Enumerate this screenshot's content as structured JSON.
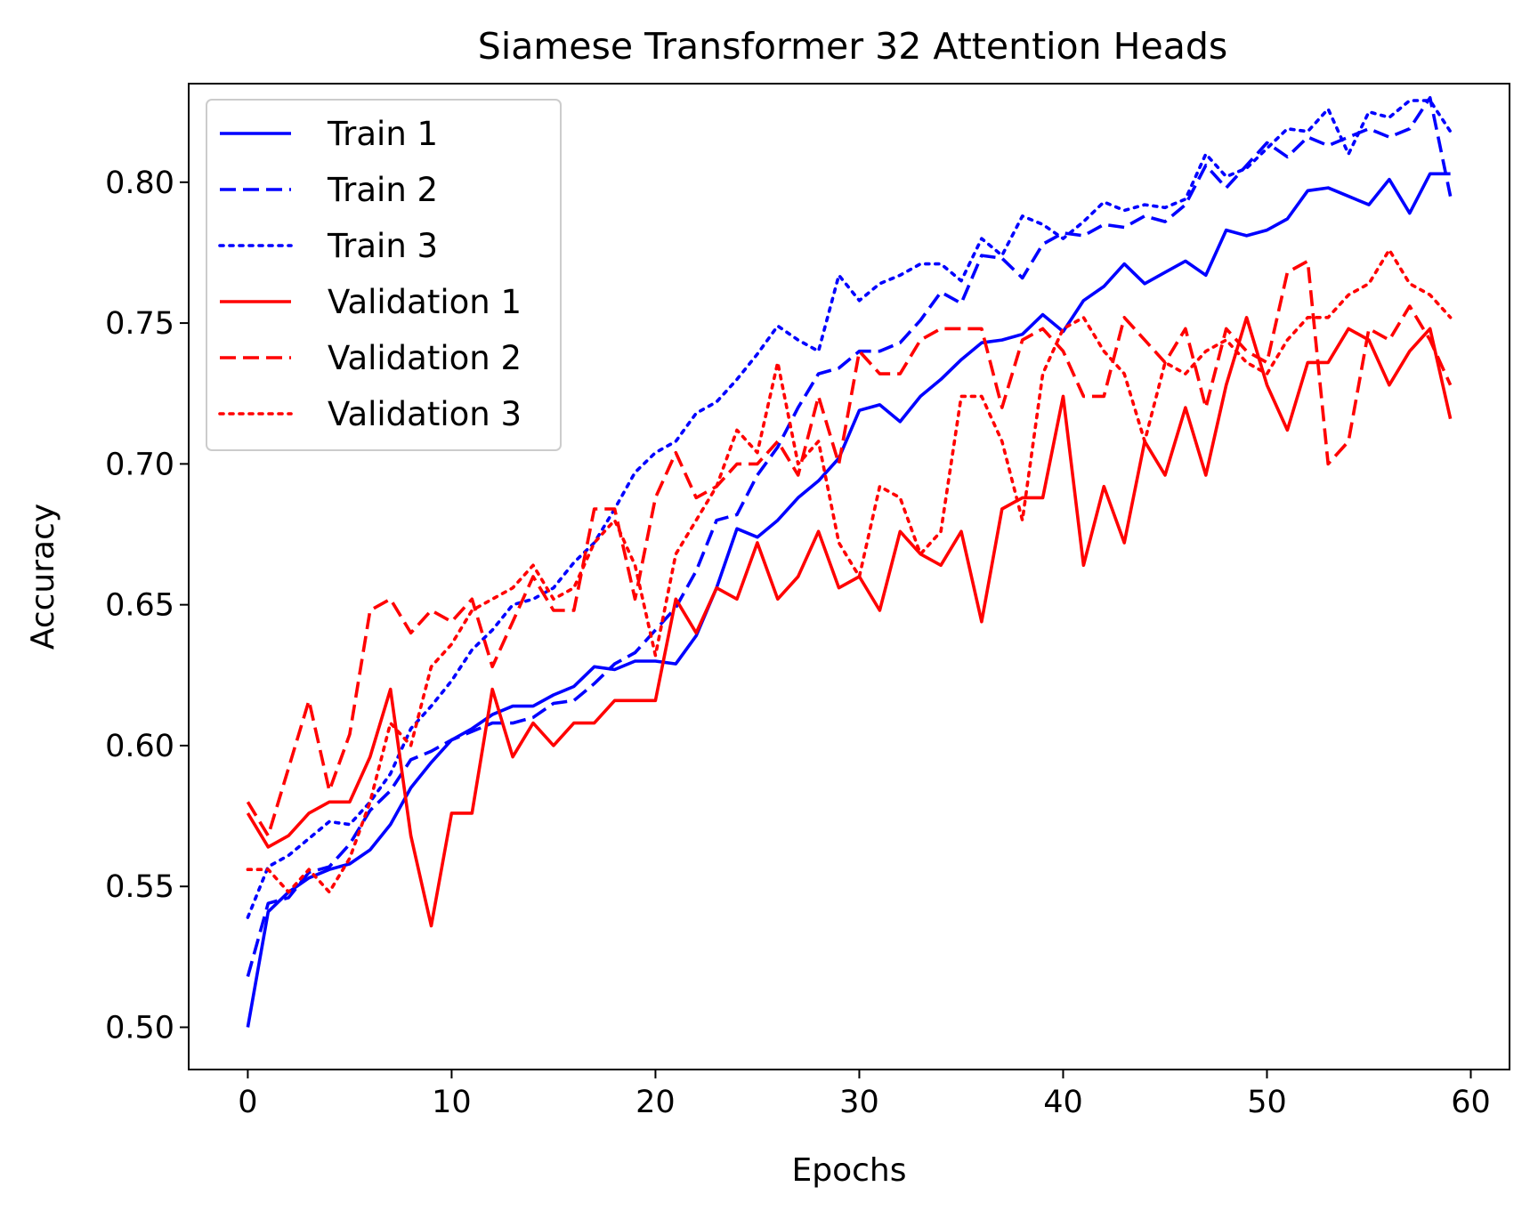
{
  "chart_data": {
    "type": "line",
    "title": "Siamese Transformer 32 Attention Heads",
    "xlabel": "Epochs",
    "ylabel": "Accuracy",
    "xlim": [
      -2.9,
      61.9
    ],
    "ylim": [
      0.485,
      0.835
    ],
    "xticks": [
      0,
      10,
      20,
      30,
      40,
      50,
      60
    ],
    "yticks": [
      0.5,
      0.55,
      0.6,
      0.65,
      0.7,
      0.75,
      0.8
    ],
    "xtick_labels": [
      "0",
      "10",
      "20",
      "30",
      "40",
      "50",
      "60"
    ],
    "ytick_labels": [
      "0.50",
      "0.55",
      "0.60",
      "0.65",
      "0.70",
      "0.75",
      "0.80"
    ],
    "grid": false,
    "legend_position": "upper-left",
    "x": [
      0,
      1,
      2,
      3,
      4,
      5,
      6,
      7,
      8,
      9,
      10,
      11,
      12,
      13,
      14,
      15,
      16,
      17,
      18,
      19,
      20,
      21,
      22,
      23,
      24,
      25,
      26,
      27,
      28,
      29,
      30,
      31,
      32,
      33,
      34,
      35,
      36,
      37,
      38,
      39,
      40,
      41,
      42,
      43,
      44,
      45,
      46,
      47,
      48,
      49,
      50,
      51,
      52,
      53,
      54,
      55,
      56,
      57,
      58,
      59
    ],
    "series": [
      {
        "name": "Train 1",
        "color": "#0000ff",
        "dash": "solid",
        "values": [
          0.5,
          0.541,
          0.548,
          0.553,
          0.556,
          0.558,
          0.563,
          0.572,
          0.585,
          0.594,
          0.602,
          0.606,
          0.611,
          0.614,
          0.614,
          0.618,
          0.621,
          0.628,
          0.627,
          0.63,
          0.63,
          0.629,
          0.639,
          0.656,
          0.677,
          0.674,
          0.68,
          0.688,
          0.694,
          0.702,
          0.719,
          0.721,
          0.715,
          0.724,
          0.73,
          0.737,
          0.743,
          0.744,
          0.746,
          0.753,
          0.747,
          0.758,
          0.763,
          0.771,
          0.764,
          0.768,
          0.772,
          0.767,
          0.783,
          0.781,
          0.783,
          0.787,
          0.797,
          0.798,
          0.795,
          0.792,
          0.801,
          0.789,
          0.803,
          0.803
        ]
      },
      {
        "name": "Train 2",
        "color": "#0000ff",
        "dash": "dashed",
        "values": [
          0.518,
          0.544,
          0.546,
          0.555,
          0.557,
          0.565,
          0.577,
          0.584,
          0.595,
          0.598,
          0.602,
          0.605,
          0.608,
          0.608,
          0.61,
          0.615,
          0.616,
          0.622,
          0.629,
          0.633,
          0.641,
          0.649,
          0.662,
          0.68,
          0.682,
          0.696,
          0.706,
          0.72,
          0.732,
          0.734,
          0.74,
          0.74,
          0.743,
          0.751,
          0.761,
          0.757,
          0.774,
          0.773,
          0.766,
          0.778,
          0.782,
          0.781,
          0.785,
          0.784,
          0.788,
          0.786,
          0.792,
          0.806,
          0.798,
          0.806,
          0.814,
          0.809,
          0.816,
          0.813,
          0.816,
          0.819,
          0.816,
          0.819,
          0.83,
          0.795
        ]
      },
      {
        "name": "Train 3",
        "color": "#0000ff",
        "dash": "dotted",
        "values": [
          0.539,
          0.557,
          0.561,
          0.567,
          0.573,
          0.572,
          0.58,
          0.59,
          0.606,
          0.614,
          0.623,
          0.634,
          0.641,
          0.65,
          0.652,
          0.656,
          0.665,
          0.672,
          0.684,
          0.697,
          0.704,
          0.708,
          0.718,
          0.722,
          0.73,
          0.739,
          0.749,
          0.744,
          0.74,
          0.767,
          0.758,
          0.764,
          0.767,
          0.771,
          0.771,
          0.765,
          0.78,
          0.774,
          0.788,
          0.785,
          0.78,
          0.786,
          0.793,
          0.79,
          0.792,
          0.791,
          0.794,
          0.81,
          0.802,
          0.805,
          0.812,
          0.819,
          0.818,
          0.826,
          0.81,
          0.825,
          0.823,
          0.829,
          0.829,
          0.818
        ]
      },
      {
        "name": "Validation 1",
        "color": "#ff0000",
        "dash": "solid",
        "values": [
          0.576,
          0.564,
          0.568,
          0.576,
          0.58,
          0.58,
          0.596,
          0.62,
          0.568,
          0.536,
          0.576,
          0.576,
          0.62,
          0.596,
          0.608,
          0.6,
          0.608,
          0.608,
          0.616,
          0.616,
          0.616,
          0.652,
          0.64,
          0.656,
          0.652,
          0.672,
          0.652,
          0.66,
          0.676,
          0.656,
          0.66,
          0.648,
          0.676,
          0.668,
          0.664,
          0.676,
          0.644,
          0.684,
          0.688,
          0.688,
          0.724,
          0.664,
          0.692,
          0.672,
          0.708,
          0.696,
          0.72,
          0.696,
          0.728,
          0.752,
          0.728,
          0.712,
          0.736,
          0.736,
          0.748,
          0.744,
          0.728,
          0.74,
          0.748,
          0.716
        ]
      },
      {
        "name": "Validation 2",
        "color": "#ff0000",
        "dash": "dashed",
        "values": [
          0.58,
          0.568,
          0.592,
          0.616,
          0.584,
          0.604,
          0.648,
          0.652,
          0.64,
          0.648,
          0.644,
          0.652,
          0.628,
          0.644,
          0.66,
          0.648,
          0.648,
          0.684,
          0.684,
          0.652,
          0.688,
          0.704,
          0.688,
          0.692,
          0.7,
          0.7,
          0.708,
          0.696,
          0.724,
          0.7,
          0.74,
          0.732,
          0.732,
          0.744,
          0.748,
          0.748,
          0.748,
          0.72,
          0.744,
          0.748,
          0.74,
          0.724,
          0.724,
          0.752,
          0.744,
          0.736,
          0.748,
          0.72,
          0.748,
          0.74,
          0.736,
          0.768,
          0.772,
          0.7,
          0.708,
          0.748,
          0.744,
          0.756,
          0.744,
          0.728
        ]
      },
      {
        "name": "Validation 3",
        "color": "#ff0000",
        "dash": "dotted",
        "values": [
          0.556,
          0.556,
          0.548,
          0.556,
          0.548,
          0.56,
          0.58,
          0.608,
          0.6,
          0.628,
          0.636,
          0.648,
          0.652,
          0.656,
          0.664,
          0.652,
          0.656,
          0.672,
          0.68,
          0.664,
          0.632,
          0.668,
          0.68,
          0.692,
          0.712,
          0.704,
          0.736,
          0.7,
          0.708,
          0.672,
          0.66,
          0.692,
          0.688,
          0.668,
          0.676,
          0.724,
          0.724,
          0.708,
          0.68,
          0.732,
          0.748,
          0.752,
          0.74,
          0.732,
          0.708,
          0.736,
          0.732,
          0.74,
          0.744,
          0.736,
          0.732,
          0.744,
          0.752,
          0.752,
          0.76,
          0.764,
          0.776,
          0.764,
          0.76,
          0.752
        ]
      }
    ]
  }
}
